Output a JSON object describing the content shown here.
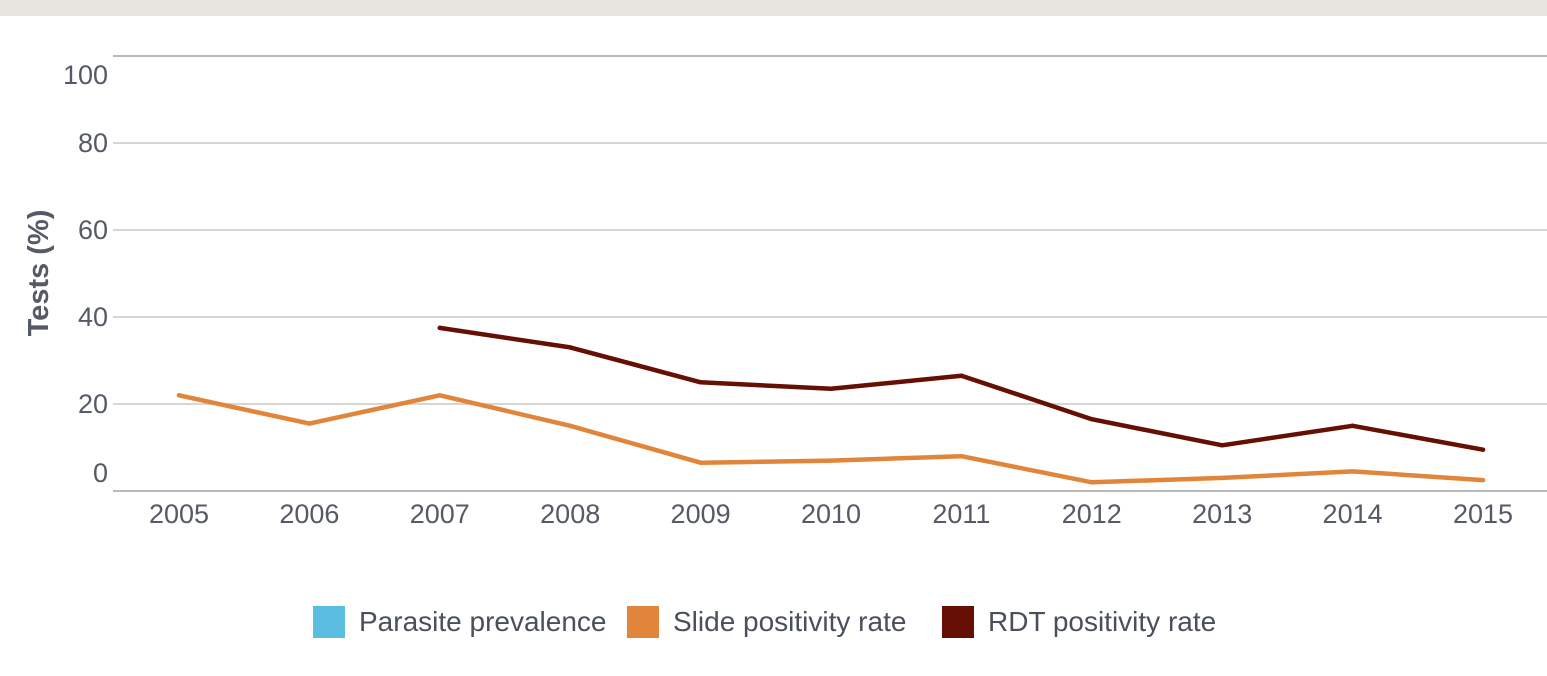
{
  "chart_data": {
    "type": "line",
    "ylabel": "Tests (%)",
    "xlabel": "",
    "ylim": [
      0,
      100
    ],
    "y_ticks": [
      0,
      20,
      40,
      60,
      80,
      100
    ],
    "categories": [
      "2005",
      "2006",
      "2007",
      "2008",
      "2009",
      "2010",
      "2011",
      "2012",
      "2013",
      "2014",
      "2015"
    ],
    "series": [
      {
        "name": "Parasite prevalence",
        "color": "#5bbde0",
        "values": [
          null,
          null,
          null,
          null,
          null,
          null,
          null,
          null,
          null,
          null,
          null
        ]
      },
      {
        "name": "Slide positivity rate",
        "color": "#e0853a",
        "values": [
          22,
          15.5,
          22,
          15,
          6.5,
          7,
          8,
          2,
          3,
          4.5,
          2.5
        ]
      },
      {
        "name": "RDT positivity rate",
        "color": "#650f05",
        "values": [
          null,
          null,
          37.5,
          33,
          25,
          23.5,
          26.5,
          16.5,
          10.5,
          15,
          9.5
        ]
      }
    ],
    "legend_position": "bottom",
    "grid": true
  }
}
